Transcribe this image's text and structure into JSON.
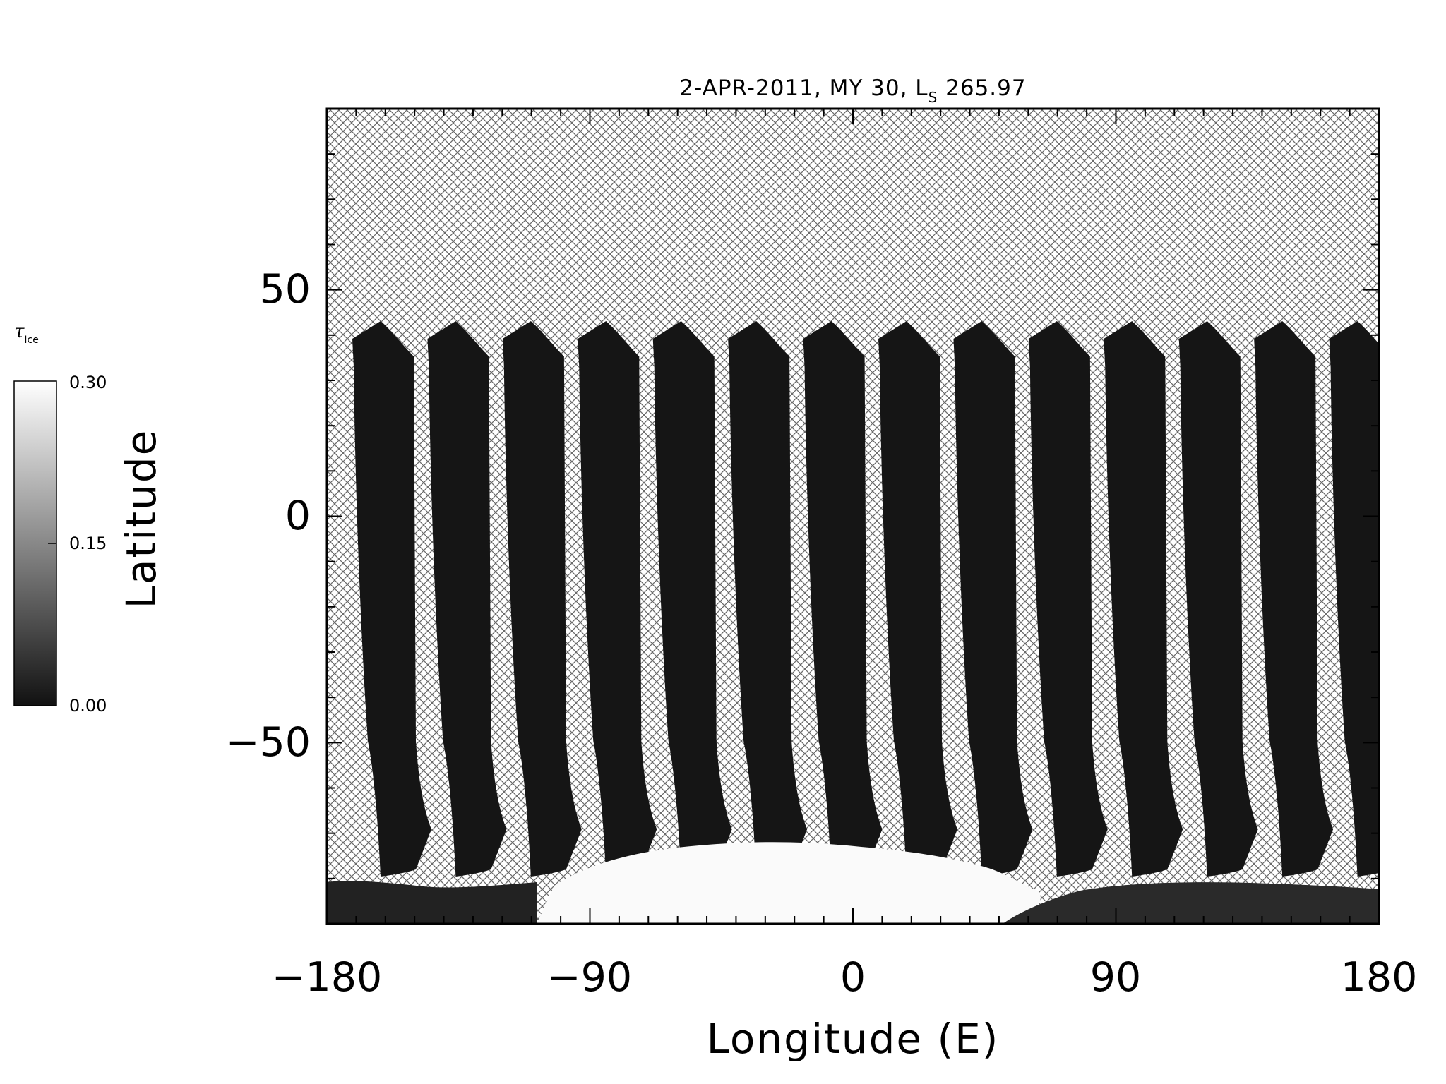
{
  "title": {
    "main": "2-APR-2011, MY 30,  L",
    "subscript": "S",
    "tail": " 265.97"
  },
  "map": {
    "xlabel": "Longitude (E)",
    "ylabel": "Latitude",
    "xlim": [
      -180,
      180
    ],
    "ylim": [
      -90,
      90
    ],
    "xticks": [
      "−180",
      "−90",
      "0",
      "90",
      "180"
    ],
    "yticks": [
      "50",
      "0",
      "−50"
    ],
    "no_data_fill": "crosshatch",
    "swath_count": 14,
    "swath_color": "#151515",
    "polar_cap_color": "#fafafa"
  },
  "colorbar": {
    "label": "τ",
    "label_subscript": "Ice",
    "ticks": [
      "0.30",
      "0.15",
      "0.00"
    ],
    "range": [
      0.0,
      0.3
    ],
    "colors": [
      "#111111",
      "#ffffff"
    ]
  }
}
